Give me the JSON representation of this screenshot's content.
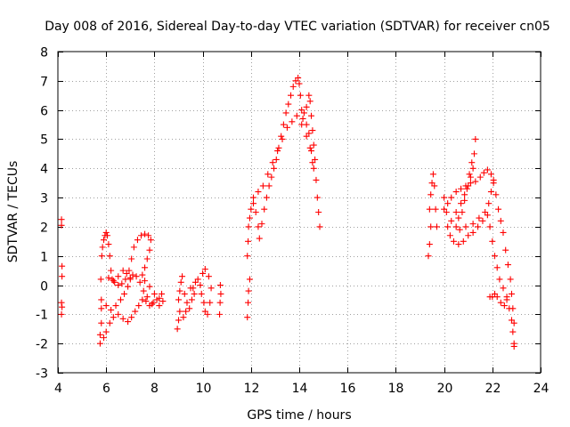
{
  "chart_data": {
    "type": "scatter",
    "title": "Day 008 of 2016, Sidereal Day-to-day VTEC variation (SDTVAR) for receiver cn05",
    "xlabel": "GPS time / hours",
    "ylabel": "SDTVAR / TECUs",
    "xlim": [
      4,
      24
    ],
    "ylim": [
      -3,
      8
    ],
    "xticks": [
      4,
      6,
      8,
      10,
      12,
      14,
      16,
      18,
      20,
      22,
      24
    ],
    "yticks": [
      -3,
      -2,
      -1,
      0,
      1,
      2,
      3,
      4,
      5,
      6,
      7,
      8
    ],
    "grid": true,
    "marker": "+",
    "color": "#ff0000",
    "series": [
      {
        "values": [
          [
            4.15,
            2.25
          ],
          [
            4.15,
            2.05
          ],
          [
            4.17,
            0.65
          ],
          [
            4.17,
            0.3
          ],
          [
            4.15,
            -0.6
          ],
          [
            4.17,
            -0.75
          ],
          [
            4.15,
            -1.0
          ],
          [
            5.75,
            -2.0
          ],
          [
            5.75,
            -1.7
          ],
          [
            5.8,
            -1.3
          ],
          [
            5.8,
            -0.8
          ],
          [
            5.78,
            0.2
          ],
          [
            5.82,
            1.0
          ],
          [
            5.85,
            1.3
          ],
          [
            5.9,
            1.55
          ],
          [
            5.95,
            1.7
          ],
          [
            6.0,
            1.8
          ],
          [
            6.05,
            1.7
          ],
          [
            6.1,
            1.4
          ],
          [
            6.15,
            1.0
          ],
          [
            6.2,
            0.5
          ],
          [
            6.25,
            0.2
          ],
          [
            6.35,
            0.1
          ],
          [
            6.5,
            0.0
          ],
          [
            6.65,
            0.05
          ],
          [
            6.8,
            0.2
          ],
          [
            6.95,
            0.5
          ],
          [
            7.05,
            0.9
          ],
          [
            7.15,
            1.3
          ],
          [
            7.3,
            1.55
          ],
          [
            7.45,
            1.7
          ],
          [
            7.6,
            1.75
          ],
          [
            7.75,
            1.7
          ],
          [
            7.85,
            1.55
          ],
          [
            7.8,
            1.2
          ],
          [
            7.7,
            0.9
          ],
          [
            7.6,
            0.6
          ],
          [
            7.5,
            0.35
          ],
          [
            7.6,
            0.15
          ],
          [
            7.8,
            -0.05
          ],
          [
            8.0,
            -0.3
          ],
          [
            8.2,
            -0.45
          ],
          [
            8.35,
            -0.55
          ],
          [
            8.3,
            -0.3
          ],
          [
            5.9,
            -1.8
          ],
          [
            6.0,
            -1.6
          ],
          [
            6.15,
            -1.3
          ],
          [
            6.3,
            -1.1
          ],
          [
            6.5,
            -1.0
          ],
          [
            6.7,
            -1.15
          ],
          [
            6.9,
            -1.25
          ],
          [
            7.05,
            -1.1
          ],
          [
            7.2,
            -0.9
          ],
          [
            7.35,
            -0.7
          ],
          [
            7.5,
            -0.5
          ],
          [
            7.65,
            -0.55
          ],
          [
            7.8,
            -0.7
          ],
          [
            7.95,
            -0.6
          ],
          [
            8.1,
            -0.5
          ],
          [
            8.2,
            -0.7
          ],
          [
            5.8,
            -0.5
          ],
          [
            6.0,
            -0.7
          ],
          [
            6.2,
            -0.85
          ],
          [
            6.4,
            -0.7
          ],
          [
            6.6,
            -0.5
          ],
          [
            6.75,
            -0.3
          ],
          [
            6.9,
            -0.05
          ],
          [
            7.0,
            0.2
          ],
          [
            7.1,
            0.35
          ],
          [
            7.25,
            0.3
          ],
          [
            7.4,
            0.1
          ],
          [
            7.55,
            -0.2
          ],
          [
            7.7,
            -0.4
          ],
          [
            7.9,
            -0.65
          ],
          [
            6.1,
            0.25
          ],
          [
            6.3,
            0.15
          ],
          [
            6.5,
            0.3
          ],
          [
            6.7,
            0.5
          ],
          [
            6.85,
            0.4
          ],
          [
            7.0,
            0.25
          ],
          [
            8.95,
            -1.5
          ],
          [
            9.0,
            -1.2
          ],
          [
            9.05,
            -0.9
          ],
          [
            9.0,
            -0.5
          ],
          [
            9.05,
            -0.2
          ],
          [
            9.1,
            0.1
          ],
          [
            9.15,
            0.3
          ],
          [
            9.25,
            -0.3
          ],
          [
            9.35,
            -0.6
          ],
          [
            9.45,
            -0.8
          ],
          [
            9.55,
            -0.5
          ],
          [
            9.6,
            -0.1
          ],
          [
            9.7,
            0.1
          ],
          [
            9.8,
            0.2
          ],
          [
            9.9,
            0.0
          ],
          [
            9.95,
            -0.3
          ],
          [
            10.05,
            -0.6
          ],
          [
            10.1,
            -0.9
          ],
          [
            10.2,
            -1.0
          ],
          [
            10.3,
            -0.6
          ],
          [
            10.35,
            -0.1
          ],
          [
            10.25,
            0.3
          ],
          [
            10.1,
            0.55
          ],
          [
            10.0,
            0.4
          ],
          [
            9.5,
            -0.1
          ],
          [
            9.65,
            -0.3
          ],
          [
            9.3,
            -0.9
          ],
          [
            9.2,
            -1.1
          ],
          [
            10.7,
            -1.0
          ],
          [
            10.72,
            -0.6
          ],
          [
            10.75,
            -0.3
          ],
          [
            10.73,
            0.0
          ],
          [
            11.85,
            -1.1
          ],
          [
            11.88,
            -0.6
          ],
          [
            11.9,
            -0.2
          ],
          [
            11.95,
            0.2
          ],
          [
            11.85,
            1.0
          ],
          [
            11.88,
            1.5
          ],
          [
            11.9,
            2.0
          ],
          [
            11.95,
            2.3
          ],
          [
            12.0,
            2.6
          ],
          [
            12.1,
            2.8
          ],
          [
            12.2,
            2.5
          ],
          [
            12.3,
            2.0
          ],
          [
            12.35,
            1.6
          ],
          [
            12.45,
            2.1
          ],
          [
            12.55,
            2.6
          ],
          [
            12.65,
            3.0
          ],
          [
            12.75,
            3.4
          ],
          [
            12.85,
            3.7
          ],
          [
            12.95,
            4.0
          ],
          [
            13.05,
            4.3
          ],
          [
            13.15,
            4.7
          ],
          [
            13.25,
            5.1
          ],
          [
            13.35,
            5.5
          ],
          [
            13.45,
            5.9
          ],
          [
            13.55,
            6.2
          ],
          [
            13.65,
            6.5
          ],
          [
            13.75,
            6.8
          ],
          [
            13.85,
            7.0
          ],
          [
            13.95,
            7.1
          ],
          [
            14.0,
            6.9
          ],
          [
            14.05,
            6.5
          ],
          [
            14.1,
            6.0
          ],
          [
            14.15,
            5.7
          ],
          [
            14.3,
            6.1
          ],
          [
            14.4,
            6.5
          ],
          [
            14.45,
            6.3
          ],
          [
            14.5,
            5.8
          ],
          [
            14.55,
            5.3
          ],
          [
            14.6,
            4.8
          ],
          [
            14.65,
            4.3
          ],
          [
            14.7,
            3.6
          ],
          [
            14.75,
            3.0
          ],
          [
            14.8,
            2.5
          ],
          [
            14.85,
            2.0
          ],
          [
            14.6,
            4.0
          ],
          [
            14.5,
            4.6
          ],
          [
            14.4,
            5.2
          ],
          [
            14.3,
            5.5
          ],
          [
            14.2,
            5.9
          ],
          [
            12.1,
            3.0
          ],
          [
            12.3,
            3.2
          ],
          [
            12.5,
            3.4
          ],
          [
            12.7,
            3.8
          ],
          [
            12.9,
            4.2
          ],
          [
            13.1,
            4.6
          ],
          [
            13.3,
            5.0
          ],
          [
            13.5,
            5.4
          ],
          [
            13.7,
            5.6
          ],
          [
            13.9,
            5.8
          ],
          [
            14.1,
            5.5
          ],
          [
            14.3,
            5.1
          ],
          [
            14.45,
            4.7
          ],
          [
            14.55,
            4.2
          ],
          [
            19.35,
            1.0
          ],
          [
            19.4,
            1.4
          ],
          [
            19.45,
            2.0
          ],
          [
            19.4,
            2.6
          ],
          [
            19.45,
            3.1
          ],
          [
            19.5,
            3.5
          ],
          [
            19.55,
            3.8
          ],
          [
            19.6,
            3.4
          ],
          [
            19.65,
            2.6
          ],
          [
            19.7,
            2.0
          ],
          [
            20.0,
            3.0
          ],
          [
            20.1,
            2.5
          ],
          [
            20.15,
            2.0
          ],
          [
            20.25,
            1.7
          ],
          [
            20.4,
            1.5
          ],
          [
            20.6,
            1.4
          ],
          [
            20.8,
            1.5
          ],
          [
            21.0,
            1.7
          ],
          [
            21.2,
            1.8
          ],
          [
            21.4,
            2.0
          ],
          [
            21.6,
            2.2
          ],
          [
            21.8,
            2.4
          ],
          [
            21.9,
            2.0
          ],
          [
            22.0,
            1.5
          ],
          [
            22.1,
            1.0
          ],
          [
            22.2,
            0.6
          ],
          [
            22.3,
            0.2
          ],
          [
            22.45,
            -0.1
          ],
          [
            22.6,
            -0.4
          ],
          [
            22.7,
            -0.8
          ],
          [
            22.8,
            -1.2
          ],
          [
            22.85,
            -1.6
          ],
          [
            22.9,
            -2.0
          ],
          [
            22.9,
            -2.1
          ],
          [
            20.0,
            2.6
          ],
          [
            20.15,
            2.8
          ],
          [
            20.3,
            3.0
          ],
          [
            20.5,
            3.2
          ],
          [
            20.7,
            3.3
          ],
          [
            20.9,
            3.4
          ],
          [
            21.1,
            3.5
          ],
          [
            21.3,
            3.55
          ],
          [
            21.5,
            3.7
          ],
          [
            21.65,
            3.85
          ],
          [
            21.8,
            3.95
          ],
          [
            21.95,
            3.8
          ],
          [
            22.05,
            3.5
          ],
          [
            22.15,
            3.1
          ],
          [
            22.25,
            2.6
          ],
          [
            22.35,
            2.2
          ],
          [
            22.45,
            1.8
          ],
          [
            22.55,
            1.2
          ],
          [
            22.65,
            0.7
          ],
          [
            22.75,
            0.2
          ],
          [
            22.8,
            -0.3
          ],
          [
            22.85,
            -0.8
          ],
          [
            22.9,
            -1.3
          ],
          [
            20.3,
            2.2
          ],
          [
            20.5,
            2.5
          ],
          [
            20.7,
            2.8
          ],
          [
            20.85,
            3.1
          ],
          [
            21.0,
            3.4
          ],
          [
            21.1,
            3.7
          ],
          [
            21.2,
            4.0
          ],
          [
            21.25,
            4.5
          ],
          [
            21.3,
            5.0
          ],
          [
            21.15,
            4.2
          ],
          [
            21.05,
            3.8
          ],
          [
            20.95,
            3.3
          ],
          [
            20.85,
            2.9
          ],
          [
            20.75,
            2.5
          ],
          [
            20.6,
            2.3
          ],
          [
            20.5,
            2.0
          ],
          [
            20.65,
            1.9
          ],
          [
            20.9,
            2.0
          ],
          [
            21.2,
            2.1
          ],
          [
            21.45,
            2.3
          ],
          [
            21.7,
            2.5
          ],
          [
            21.85,
            2.8
          ],
          [
            21.95,
            3.2
          ],
          [
            22.05,
            3.6
          ],
          [
            21.9,
            -0.4
          ],
          [
            22.0,
            -0.4
          ],
          [
            22.1,
            -0.3
          ],
          [
            22.2,
            -0.4
          ],
          [
            22.35,
            -0.6
          ],
          [
            22.5,
            -0.7
          ],
          [
            22.6,
            -0.5
          ]
        ]
      }
    ]
  }
}
